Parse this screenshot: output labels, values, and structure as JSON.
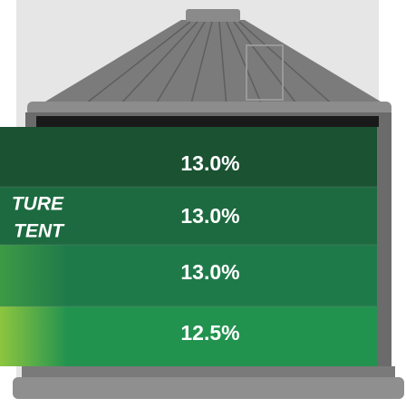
{
  "side_label": [
    "TURE",
    "TENT"
  ],
  "layers": [
    "13.0%",
    "13.0%",
    "13.0%",
    "12.5%"
  ]
}
